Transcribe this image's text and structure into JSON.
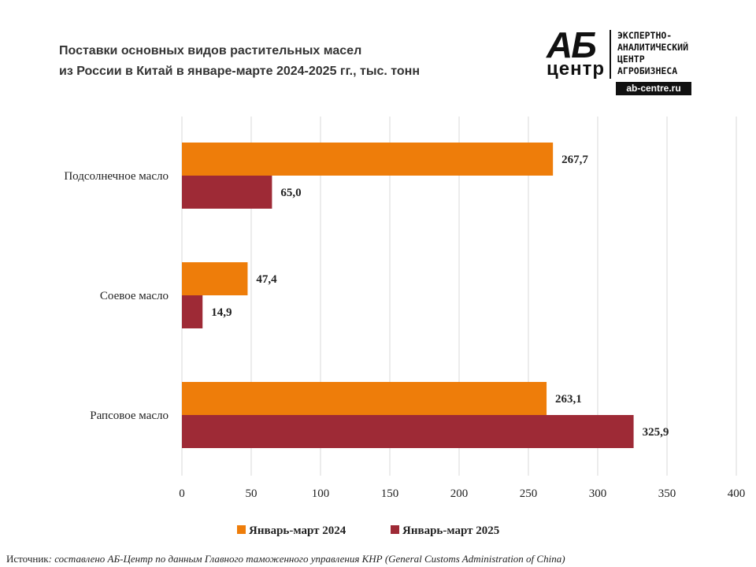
{
  "title_lines": [
    "Поставки основных видов растительных масел",
    "из России в Китай в январе-марте 2024-2025 гг., тыс. тонн"
  ],
  "logo": {
    "big_top": "АБ",
    "big_bottom": "центр",
    "text_lines": [
      "ЭКСПЕРТНО-",
      "АНАЛИТИЧЕСКИЙ",
      "ЦЕНТР",
      "АГРОБИЗНЕСА"
    ],
    "url": "ab-centre.ru"
  },
  "source": {
    "lead": "Источник",
    "rest": ": составлено АБ-Центр по данным Главного таможенного управления КНР (General Customs Administration of China)"
  },
  "colors": {
    "series_2024": "#EE7D0A",
    "series_2025": "#9E2A36",
    "grid": "#D9D9D9"
  },
  "chart_data": {
    "type": "bar",
    "orientation": "horizontal",
    "categories": [
      "Подсолнечное масло",
      "Соевое масло",
      "Рапсовое масло"
    ],
    "series": [
      {
        "name": "Январь-март 2024",
        "values": [
          267.7,
          47.4,
          263.1
        ],
        "labels": [
          "267,7",
          "47,4",
          "263,1"
        ]
      },
      {
        "name": "Январь-март 2025",
        "values": [
          65.0,
          14.9,
          325.9
        ],
        "labels": [
          "65,0",
          "14,9",
          "325,9"
        ]
      }
    ],
    "xlim": [
      0,
      400
    ],
    "xticks": [
      0,
      50,
      100,
      150,
      200,
      250,
      300,
      350,
      400
    ],
    "grid": true,
    "legend": "bottom"
  }
}
